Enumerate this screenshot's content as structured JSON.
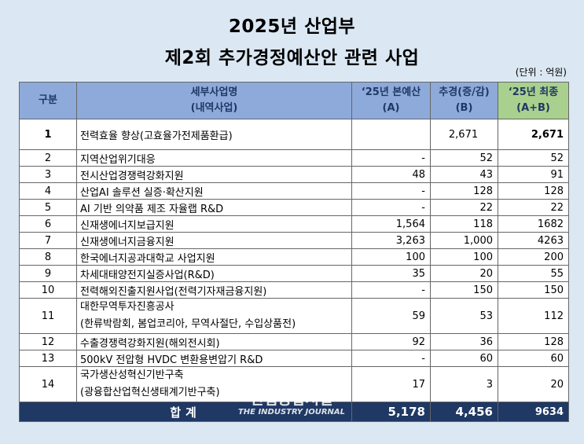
{
  "title_line1": "2025년 산업부",
  "title_line2": "제2회 추가경정예산안 관련 사업",
  "unit_note": "(단위 : 억원)",
  "headers": {
    "col1": "구분",
    "col2_line1": "세부사업명",
    "col2_line2": "(내역사업)",
    "col3_line1": "‘25년 본예산",
    "col3_line2": "(A)",
    "col4_line1": "추경(증/감)",
    "col4_line2": "(B)",
    "col5_line1": "‘25년 최종",
    "col5_line2": "(A+B)"
  },
  "rows": [
    {
      "no": "1",
      "name": "전력효율 향상(고효율가전제품환급)",
      "base": "",
      "supp": "2,671",
      "final": "2,671"
    },
    {
      "no": "2",
      "name": "지역산업위기대응",
      "base": "-",
      "supp": "52",
      "final": "52"
    },
    {
      "no": "3",
      "name": "전시산업경쟁력강화지원",
      "base": "48",
      "supp": "43",
      "final": "91"
    },
    {
      "no": "4",
      "name": "산업AI 솔루션 실증·확산지원",
      "base": "-",
      "supp": "128",
      "final": "128"
    },
    {
      "no": "5",
      "name": "AI 기반 의약품 제조 자율랩 R&D",
      "base": "-",
      "supp": "22",
      "final": "22"
    },
    {
      "no": "6",
      "name": "신재생에너지보급지원",
      "base": "1,564",
      "supp": "118",
      "final": "1682"
    },
    {
      "no": "7",
      "name": "신재생에너지금융지원",
      "base": "3,263",
      "supp": "1,000",
      "final": "4263"
    },
    {
      "no": "8",
      "name": "한국에너지공과대학교 사업지원",
      "base": "100",
      "supp": "100",
      "final": "200"
    },
    {
      "no": "9",
      "name": "차세대태양전지실증사업(R&D)",
      "base": "35",
      "supp": "20",
      "final": "55"
    },
    {
      "no": "10",
      "name": "전력해외진출지원사업(전력기자재금융지원)",
      "base": "-",
      "supp": "150",
      "final": "150"
    },
    {
      "no": "11",
      "name": "대한무역투자진흥공사",
      "sub": "(한류박람회, 봄업코리아, 무역사절단, 수입상품전)",
      "base": "59",
      "supp": "53",
      "final": "112"
    },
    {
      "no": "12",
      "name": "수출경쟁력강화지원(해외전시회)",
      "base": "92",
      "supp": "36",
      "final": "128"
    },
    {
      "no": "13",
      "name": "500kV 전압형 HVDC 변환용변압기 R&D",
      "base": "-",
      "supp": "60",
      "final": "60"
    },
    {
      "no": "14",
      "name": "국가생산성혁신기반구축",
      "sub": "(광융합산업혁신생태계기반구축)",
      "base": "17",
      "supp": "3",
      "final": "20"
    }
  ],
  "total": {
    "label": "합계",
    "base": "5,178",
    "supp": "4,456",
    "final": "9634"
  },
  "watermark": {
    "ko": "산업종합저널",
    "en": "THE INDUSTRY JOURNAL"
  },
  "colors": {
    "header_blue": "#8eaadb",
    "header_green": "#a9d08e",
    "total_navy": "#1f3864",
    "background": "#dbe8f3"
  }
}
